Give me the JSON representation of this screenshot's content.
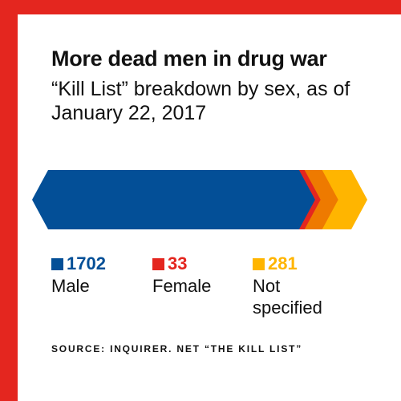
{
  "header": {
    "title": "More dead men in drug war",
    "subtitle": "“Kill List” breakdown by sex, as of January 22, 2017"
  },
  "chart_data": {
    "type": "bar",
    "orientation": "horizontal-stacked",
    "categories": [
      "Male",
      "Female",
      "Not specified"
    ],
    "values": [
      1702,
      33,
      281
    ],
    "series": [
      {
        "name": "Male",
        "value": 1702,
        "color": "#034f97"
      },
      {
        "name": "Female",
        "value": 33,
        "color": "#e4261f"
      },
      {
        "name": "Not specified",
        "value": 281,
        "color": "#ffb500"
      }
    ],
    "overlap_color": "#ee7a00",
    "legend_placement": "bottom",
    "grid": false
  },
  "legend": [
    {
      "value": "1702",
      "label": "Male",
      "color": "#034f97"
    },
    {
      "value": "33",
      "label": "Female",
      "color": "#e4261f"
    },
    {
      "value": "281",
      "label": "Not specified",
      "color": "#ffb500"
    }
  ],
  "source": "SOURCE: INQUIRER. NET “THE KILL LIST”",
  "colors": {
    "frame": "#e4261f",
    "text": "#111111",
    "background": "#ffffff"
  }
}
